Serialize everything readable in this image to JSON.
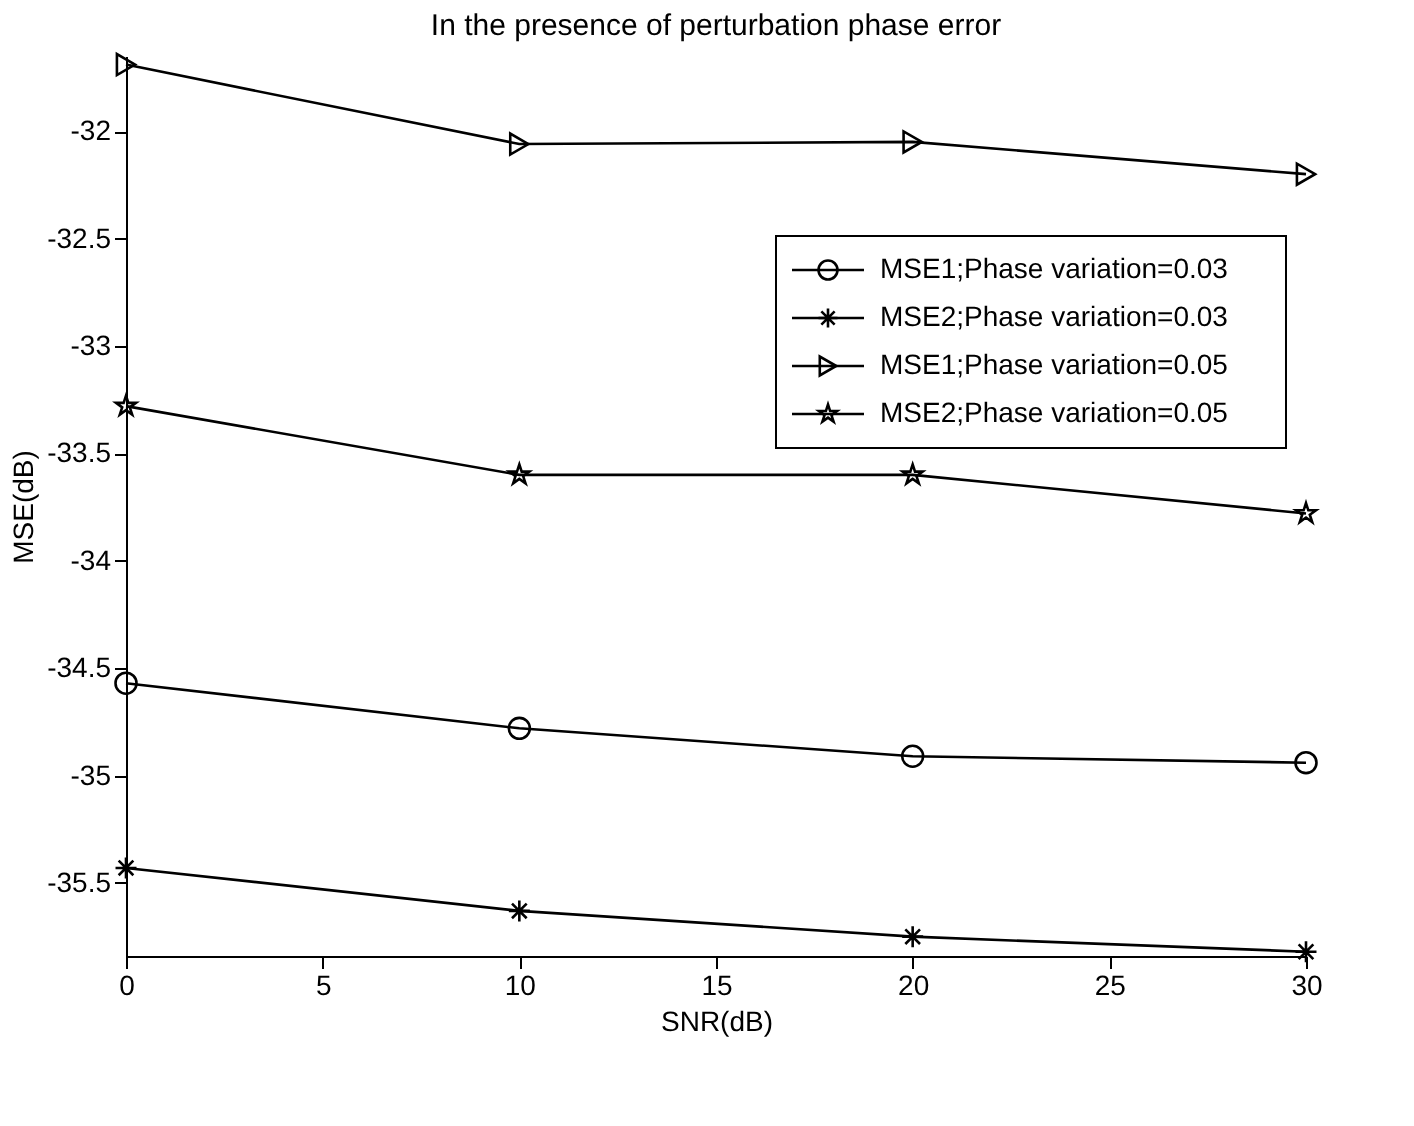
{
  "chart_data": {
    "type": "line",
    "title": "In the presence of perturbation phase error",
    "xlabel": "SNR(dB)",
    "ylabel": "MSE(dB)",
    "x": [
      0,
      10,
      20,
      30
    ],
    "series": [
      {
        "name": "MSE1;Phase variation=0.03",
        "color": "#000000",
        "marker": "circle",
        "values": [
          -34.57,
          -34.78,
          -34.91,
          -34.94
        ]
      },
      {
        "name": "MSE2;Phase variation=0.03",
        "color": "#000000",
        "marker": "cross",
        "values": [
          -35.43,
          -35.63,
          -35.75,
          -35.82
        ]
      },
      {
        "name": "MSE1;Phase variation=0.05",
        "color": "#000000",
        "marker": "triangle",
        "values": [
          -31.69,
          -32.06,
          -32.05,
          -32.2
        ]
      },
      {
        "name": "MSE2;Phase variation=0.05",
        "color": "#000000",
        "marker": "star",
        "values": [
          -33.28,
          -33.6,
          -33.6,
          -33.78
        ]
      }
    ],
    "xlim": [
      0,
      30
    ],
    "xticks": [
      0,
      5,
      10,
      15,
      20,
      25,
      30
    ],
    "ylim": [
      -35.84,
      -31.65
    ],
    "yticks": [
      -35.5,
      -35,
      -34.5,
      -34,
      -33.5,
      -33,
      -32.5,
      -32
    ],
    "grid": false,
    "legend": "top right",
    "line_style": "solid"
  }
}
